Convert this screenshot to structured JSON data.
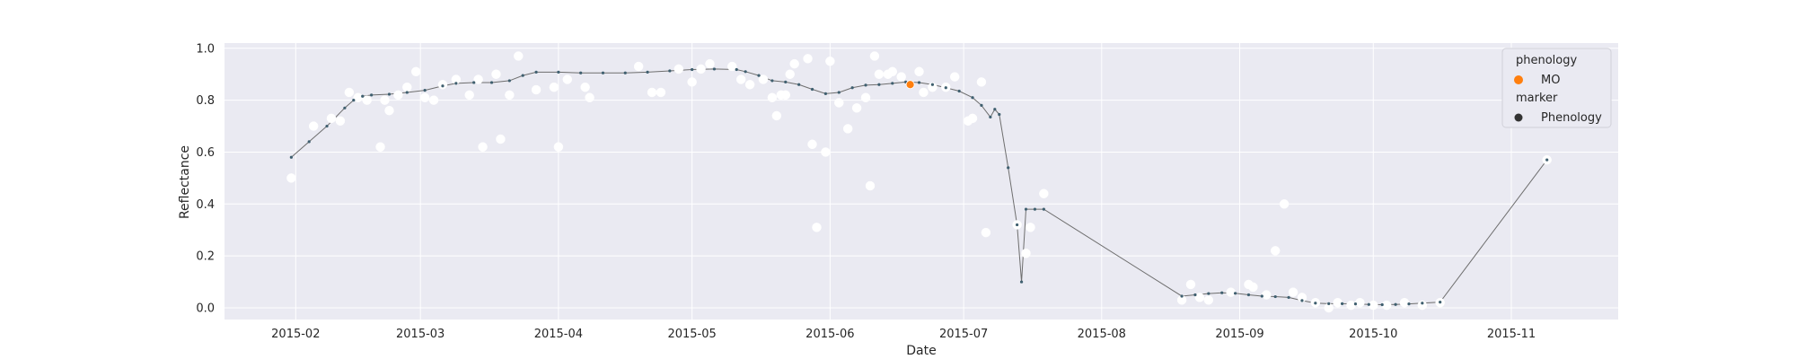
{
  "chart_data": {
    "type": "scatter",
    "xlabel": "Date",
    "ylabel": "Reflectance",
    "xlim": [
      "2015-01-16",
      "2015-11-25"
    ],
    "ylim": [
      -0.045,
      1.02
    ],
    "grid": true,
    "x_ticks": [
      "2015-02-01",
      "2015-03-01",
      "2015-04-01",
      "2015-05-01",
      "2015-06-01",
      "2015-07-01",
      "2015-08-01",
      "2015-09-01",
      "2015-10-01",
      "2015-11-01"
    ],
    "x_tick_labels": [
      "2015-02",
      "2015-03",
      "2015-04",
      "2015-05",
      "2015-06",
      "2015-07",
      "2015-08",
      "2015-09",
      "2015-10",
      "2015-11"
    ],
    "y_ticks": [
      0.0,
      0.2,
      0.4,
      0.6,
      0.8,
      1.0
    ],
    "y_tick_labels": [
      "0.0",
      "0.2",
      "0.4",
      "0.6",
      "0.8",
      "1.0"
    ],
    "legend": {
      "placement": "top-right",
      "hue_title": "phenology",
      "hue_label": "MO",
      "marker_title": "marker",
      "marker_label": "Phenology"
    },
    "colors": {
      "background": "#eaeaf2",
      "grid": "#ffffff",
      "observation": "#ffffff",
      "smoothed_line": "#6e6e6e",
      "smoothed_point": "#3f5f6f",
      "phenology": "#ff7f0e",
      "legend_marker": "#333333"
    },
    "observations": [
      {
        "x": "2015-01-31",
        "y": 0.5
      },
      {
        "x": "2015-02-05",
        "y": 0.7
      },
      {
        "x": "2015-02-09",
        "y": 0.73
      },
      {
        "x": "2015-02-11",
        "y": 0.72
      },
      {
        "x": "2015-02-13",
        "y": 0.83
      },
      {
        "x": "2015-02-15",
        "y": 0.81
      },
      {
        "x": "2015-02-17",
        "y": 0.8
      },
      {
        "x": "2015-02-20",
        "y": 0.62
      },
      {
        "x": "2015-02-21",
        "y": 0.8
      },
      {
        "x": "2015-02-22",
        "y": 0.76
      },
      {
        "x": "2015-02-24",
        "y": 0.82
      },
      {
        "x": "2015-02-26",
        "y": 0.85
      },
      {
        "x": "2015-02-28",
        "y": 0.91
      },
      {
        "x": "2015-03-02",
        "y": 0.81
      },
      {
        "x": "2015-03-04",
        "y": 0.8
      },
      {
        "x": "2015-03-06",
        "y": 0.86
      },
      {
        "x": "2015-03-09",
        "y": 0.88
      },
      {
        "x": "2015-03-12",
        "y": 0.82
      },
      {
        "x": "2015-03-14",
        "y": 0.88
      },
      {
        "x": "2015-03-15",
        "y": 0.62
      },
      {
        "x": "2015-03-18",
        "y": 0.9
      },
      {
        "x": "2015-03-19",
        "y": 0.65
      },
      {
        "x": "2015-03-21",
        "y": 0.82
      },
      {
        "x": "2015-03-23",
        "y": 0.97
      },
      {
        "x": "2015-03-27",
        "y": 0.84
      },
      {
        "x": "2015-03-31",
        "y": 0.85
      },
      {
        "x": "2015-04-01",
        "y": 0.62
      },
      {
        "x": "2015-04-03",
        "y": 0.88
      },
      {
        "x": "2015-04-07",
        "y": 0.85
      },
      {
        "x": "2015-04-08",
        "y": 0.81
      },
      {
        "x": "2015-04-19",
        "y": 0.93
      },
      {
        "x": "2015-04-22",
        "y": 0.83
      },
      {
        "x": "2015-04-24",
        "y": 0.83
      },
      {
        "x": "2015-04-28",
        "y": 0.92
      },
      {
        "x": "2015-05-01",
        "y": 0.87
      },
      {
        "x": "2015-05-03",
        "y": 0.92
      },
      {
        "x": "2015-05-05",
        "y": 0.94
      },
      {
        "x": "2015-05-10",
        "y": 0.93
      },
      {
        "x": "2015-05-12",
        "y": 0.88
      },
      {
        "x": "2015-05-14",
        "y": 0.86
      },
      {
        "x": "2015-05-17",
        "y": 0.88
      },
      {
        "x": "2015-05-19",
        "y": 0.81
      },
      {
        "x": "2015-05-20",
        "y": 0.74
      },
      {
        "x": "2015-05-21",
        "y": 0.82
      },
      {
        "x": "2015-05-22",
        "y": 0.82
      },
      {
        "x": "2015-05-23",
        "y": 0.9
      },
      {
        "x": "2015-05-24",
        "y": 0.94
      },
      {
        "x": "2015-05-27",
        "y": 0.96
      },
      {
        "x": "2015-05-28",
        "y": 0.63
      },
      {
        "x": "2015-05-29",
        "y": 0.31
      },
      {
        "x": "2015-05-31",
        "y": 0.6
      },
      {
        "x": "2015-06-01",
        "y": 0.95
      },
      {
        "x": "2015-06-03",
        "y": 0.79
      },
      {
        "x": "2015-06-05",
        "y": 0.69
      },
      {
        "x": "2015-06-07",
        "y": 0.77
      },
      {
        "x": "2015-06-09",
        "y": 0.81
      },
      {
        "x": "2015-06-10",
        "y": 0.47
      },
      {
        "x": "2015-06-11",
        "y": 0.97
      },
      {
        "x": "2015-06-12",
        "y": 0.9
      },
      {
        "x": "2015-06-14",
        "y": 0.9
      },
      {
        "x": "2015-06-15",
        "y": 0.91
      },
      {
        "x": "2015-06-17",
        "y": 0.89
      },
      {
        "x": "2015-06-21",
        "y": 0.91
      },
      {
        "x": "2015-06-22",
        "y": 0.83
      },
      {
        "x": "2015-06-24",
        "y": 0.85
      },
      {
        "x": "2015-06-27",
        "y": 0.85
      },
      {
        "x": "2015-06-29",
        "y": 0.89
      },
      {
        "x": "2015-07-02",
        "y": 0.72
      },
      {
        "x": "2015-07-03",
        "y": 0.73
      },
      {
        "x": "2015-07-05",
        "y": 0.87
      },
      {
        "x": "2015-07-06",
        "y": 0.29
      },
      {
        "x": "2015-07-13",
        "y": 0.32
      },
      {
        "x": "2015-07-15",
        "y": 0.21
      },
      {
        "x": "2015-07-16",
        "y": 0.31
      },
      {
        "x": "2015-07-19",
        "y": 0.44
      },
      {
        "x": "2015-08-19",
        "y": 0.03
      },
      {
        "x": "2015-08-21",
        "y": 0.09
      },
      {
        "x": "2015-08-23",
        "y": 0.04
      },
      {
        "x": "2015-08-25",
        "y": 0.03
      },
      {
        "x": "2015-08-30",
        "y": 0.06
      },
      {
        "x": "2015-09-03",
        "y": 0.09
      },
      {
        "x": "2015-09-04",
        "y": 0.08
      },
      {
        "x": "2015-09-07",
        "y": 0.05
      },
      {
        "x": "2015-09-09",
        "y": 0.22
      },
      {
        "x": "2015-09-11",
        "y": 0.4
      },
      {
        "x": "2015-09-13",
        "y": 0.06
      },
      {
        "x": "2015-09-15",
        "y": 0.04
      },
      {
        "x": "2015-09-18",
        "y": 0.02
      },
      {
        "x": "2015-09-21",
        "y": 0.0
      },
      {
        "x": "2015-09-23",
        "y": 0.02
      },
      {
        "x": "2015-09-26",
        "y": 0.01
      },
      {
        "x": "2015-09-28",
        "y": 0.02
      },
      {
        "x": "2015-10-01",
        "y": 0.01
      },
      {
        "x": "2015-10-04",
        "y": 0.01
      },
      {
        "x": "2015-10-08",
        "y": 0.02
      },
      {
        "x": "2015-10-12",
        "y": 0.01
      },
      {
        "x": "2015-10-16",
        "y": 0.02
      },
      {
        "x": "2015-11-09",
        "y": 0.57
      }
    ],
    "smoothed": [
      {
        "x": "2015-01-31",
        "y": 0.58
      },
      {
        "x": "2015-02-04",
        "y": 0.64
      },
      {
        "x": "2015-02-08",
        "y": 0.7
      },
      {
        "x": "2015-02-12",
        "y": 0.77
      },
      {
        "x": "2015-02-14",
        "y": 0.8
      },
      {
        "x": "2015-02-16",
        "y": 0.815
      },
      {
        "x": "2015-02-18",
        "y": 0.82
      },
      {
        "x": "2015-02-22",
        "y": 0.823
      },
      {
        "x": "2015-02-26",
        "y": 0.83
      },
      {
        "x": "2015-03-02",
        "y": 0.838
      },
      {
        "x": "2015-03-06",
        "y": 0.855
      },
      {
        "x": "2015-03-09",
        "y": 0.865
      },
      {
        "x": "2015-03-13",
        "y": 0.868
      },
      {
        "x": "2015-03-17",
        "y": 0.868
      },
      {
        "x": "2015-03-21",
        "y": 0.875
      },
      {
        "x": "2015-03-24",
        "y": 0.895
      },
      {
        "x": "2015-03-27",
        "y": 0.908
      },
      {
        "x": "2015-04-01",
        "y": 0.908
      },
      {
        "x": "2015-04-06",
        "y": 0.905
      },
      {
        "x": "2015-04-11",
        "y": 0.905
      },
      {
        "x": "2015-04-16",
        "y": 0.905
      },
      {
        "x": "2015-04-21",
        "y": 0.908
      },
      {
        "x": "2015-04-26",
        "y": 0.913
      },
      {
        "x": "2015-05-01",
        "y": 0.918
      },
      {
        "x": "2015-05-06",
        "y": 0.92
      },
      {
        "x": "2015-05-11",
        "y": 0.918
      },
      {
        "x": "2015-05-13",
        "y": 0.91
      },
      {
        "x": "2015-05-16",
        "y": 0.895
      },
      {
        "x": "2015-05-19",
        "y": 0.875
      },
      {
        "x": "2015-05-22",
        "y": 0.87
      },
      {
        "x": "2015-05-25",
        "y": 0.86
      },
      {
        "x": "2015-05-28",
        "y": 0.842
      },
      {
        "x": "2015-05-31",
        "y": 0.825
      },
      {
        "x": "2015-06-03",
        "y": 0.83
      },
      {
        "x": "2015-06-06",
        "y": 0.848
      },
      {
        "x": "2015-06-09",
        "y": 0.858
      },
      {
        "x": "2015-06-12",
        "y": 0.86
      },
      {
        "x": "2015-06-15",
        "y": 0.865
      },
      {
        "x": "2015-06-18",
        "y": 0.87
      },
      {
        "x": "2015-06-21",
        "y": 0.868
      },
      {
        "x": "2015-06-24",
        "y": 0.86
      },
      {
        "x": "2015-06-27",
        "y": 0.848
      },
      {
        "x": "2015-06-30",
        "y": 0.835
      },
      {
        "x": "2015-07-03",
        "y": 0.81
      },
      {
        "x": "2015-07-05",
        "y": 0.78
      },
      {
        "x": "2015-07-07",
        "y": 0.735
      },
      {
        "x": "2015-07-08",
        "y": 0.765
      },
      {
        "x": "2015-07-09",
        "y": 0.745
      },
      {
        "x": "2015-07-11",
        "y": 0.54
      },
      {
        "x": "2015-07-13",
        "y": 0.32
      },
      {
        "x": "2015-07-14",
        "y": 0.1
      },
      {
        "x": "2015-07-15",
        "y": 0.38
      },
      {
        "x": "2015-07-17",
        "y": 0.38
      },
      {
        "x": "2015-07-19",
        "y": 0.38
      },
      {
        "x": "2015-08-19",
        "y": 0.045
      },
      {
        "x": "2015-08-22",
        "y": 0.05
      },
      {
        "x": "2015-08-25",
        "y": 0.055
      },
      {
        "x": "2015-08-28",
        "y": 0.058
      },
      {
        "x": "2015-08-31",
        "y": 0.056
      },
      {
        "x": "2015-09-03",
        "y": 0.05
      },
      {
        "x": "2015-09-06",
        "y": 0.045
      },
      {
        "x": "2015-09-09",
        "y": 0.043
      },
      {
        "x": "2015-09-12",
        "y": 0.04
      },
      {
        "x": "2015-09-15",
        "y": 0.028
      },
      {
        "x": "2015-09-18",
        "y": 0.018
      },
      {
        "x": "2015-09-21",
        "y": 0.016
      },
      {
        "x": "2015-09-24",
        "y": 0.016
      },
      {
        "x": "2015-09-27",
        "y": 0.015
      },
      {
        "x": "2015-09-30",
        "y": 0.013
      },
      {
        "x": "2015-10-03",
        "y": 0.012
      },
      {
        "x": "2015-10-06",
        "y": 0.013
      },
      {
        "x": "2015-10-09",
        "y": 0.015
      },
      {
        "x": "2015-10-12",
        "y": 0.018
      },
      {
        "x": "2015-10-16",
        "y": 0.022
      },
      {
        "x": "2015-11-09",
        "y": 0.57
      }
    ],
    "phenology_points": [
      {
        "x": "2015-06-19",
        "y": 0.86,
        "label": "MO"
      }
    ]
  }
}
